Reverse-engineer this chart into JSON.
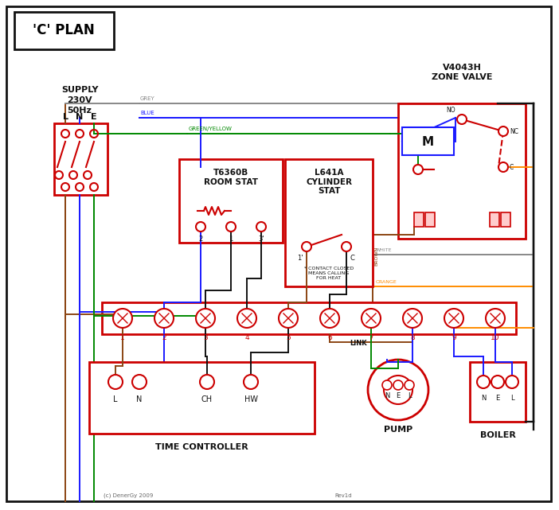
{
  "bg_color": "#ffffff",
  "red": "#cc0000",
  "blue": "#1a1aff",
  "green": "#008800",
  "grey": "#888888",
  "brown": "#8B4513",
  "orange": "#FF8C00",
  "black": "#111111",
  "white_wire": "#888888",
  "title": "'C' PLAN",
  "supply_text": "SUPPLY\n230V\n50Hz",
  "zone_valve_text": "V4043H\nZONE VALVE",
  "room_stat_text": "T6360B\nROOM STAT",
  "cyl_stat_text": "L641A\nCYLINDER\nSTAT",
  "time_ctrl_text": "TIME CONTROLLER",
  "pump_text": "PUMP",
  "boiler_text": "BOILER",
  "copyright": "(c) DenerGy 2009",
  "rev": "Rev1d"
}
